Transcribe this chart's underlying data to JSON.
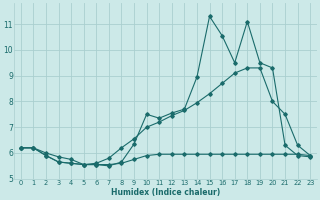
{
  "xlabel": "Humidex (Indice chaleur)",
  "background_color": "#cce9e8",
  "grid_color": "#aacfcf",
  "line_color": "#1a6b6b",
  "xlim": [
    -0.5,
    23.5
  ],
  "ylim": [
    5.0,
    11.8
  ],
  "yticks": [
    5,
    6,
    7,
    8,
    9,
    10,
    11
  ],
  "xticks": [
    0,
    1,
    2,
    3,
    4,
    5,
    6,
    7,
    8,
    9,
    10,
    11,
    12,
    13,
    14,
    15,
    16,
    17,
    18,
    19,
    20,
    21,
    22,
    23
  ],
  "series": [
    {
      "x": [
        0,
        1,
        2,
        3,
        4,
        5,
        6,
        7,
        8,
        9,
        10,
        11,
        12,
        13,
        14,
        15,
        16,
        17,
        18,
        19,
        20,
        21,
        22,
        23
      ],
      "y": [
        6.2,
        6.2,
        5.9,
        5.65,
        5.6,
        5.55,
        5.55,
        5.5,
        5.65,
        6.35,
        7.5,
        7.35,
        7.55,
        7.7,
        8.95,
        11.3,
        10.55,
        9.5,
        11.1,
        9.5,
        9.3,
        6.3,
        5.9,
        5.85
      ]
    },
    {
      "x": [
        0,
        1,
        2,
        3,
        4,
        5,
        6,
        7,
        8,
        9,
        10,
        11,
        12,
        13,
        14,
        15,
        16,
        17,
        18,
        19,
        20,
        21,
        22,
        23
      ],
      "y": [
        6.2,
        6.2,
        5.9,
        5.65,
        5.6,
        5.55,
        5.6,
        5.8,
        6.2,
        6.55,
        7.0,
        7.2,
        7.45,
        7.65,
        7.95,
        8.3,
        8.7,
        9.1,
        9.3,
        9.3,
        8.0,
        7.5,
        6.3,
        5.9
      ]
    },
    {
      "x": [
        0,
        1,
        2,
        3,
        4,
        5,
        6,
        7,
        8,
        9,
        10,
        11,
        12,
        13,
        14,
        15,
        16,
        17,
        18,
        19,
        20,
        21,
        22,
        23
      ],
      "y": [
        6.2,
        6.2,
        6.0,
        5.85,
        5.75,
        5.55,
        5.55,
        5.55,
        5.6,
        5.75,
        5.9,
        5.95,
        5.95,
        5.95,
        5.95,
        5.95,
        5.95,
        5.95,
        5.95,
        5.95,
        5.95,
        5.95,
        5.95,
        5.9
      ]
    }
  ]
}
